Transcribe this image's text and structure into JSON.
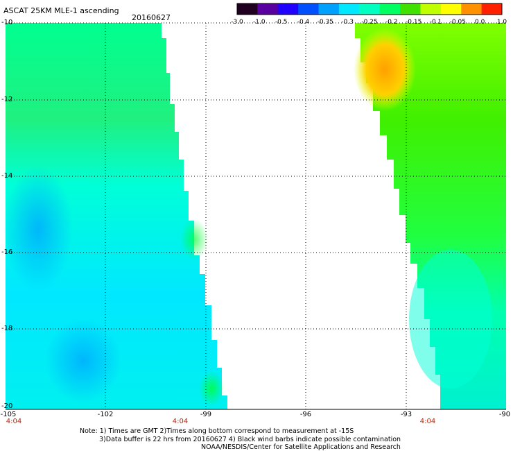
{
  "title": "ASCAT 25KM MLE-1 ascending",
  "date": "20160627",
  "colorbar": {
    "labels": [
      "-3.0",
      "-1.0",
      "-0.5",
      "-0.4",
      "-0.35",
      "-0.3",
      "-0.25",
      "-0.2",
      "-0.15",
      "-0.1",
      "-0.05",
      "0.0",
      "1.0"
    ],
    "colors": [
      "#200020",
      "#5a00a0",
      "#2000ff",
      "#0050ff",
      "#00a0ff",
      "#00e8ff",
      "#00ffc0",
      "#00ff60",
      "#40e000",
      "#c0ff00",
      "#ffff00",
      "#ff9000",
      "#ff2000"
    ]
  },
  "axes": {
    "lat_labels": [
      "-10",
      "-12",
      "-14",
      "-16",
      "-18",
      "-20"
    ],
    "lon_labels": [
      "-105",
      "-102",
      "-99",
      "-96",
      "-93",
      "-90"
    ],
    "lat_range": [
      -20,
      -10
    ],
    "lon_range": [
      -105,
      -90
    ]
  },
  "time_labels": [
    "4:04",
    "4:04",
    "4:04"
  ],
  "notes": [
    "Note: 1) Times are GMT 2)Times along bottom correspond to measurement at -15S",
    "3)Data buffer is 22 hrs from 20160627 4) Black wind barbs indicate possible contamination",
    "NOAA/NESDIS/Center for Satellite Applications and Research"
  ],
  "colors": {
    "grid": "#000000",
    "time_label": "#cc2200",
    "background": "#ffffff"
  }
}
